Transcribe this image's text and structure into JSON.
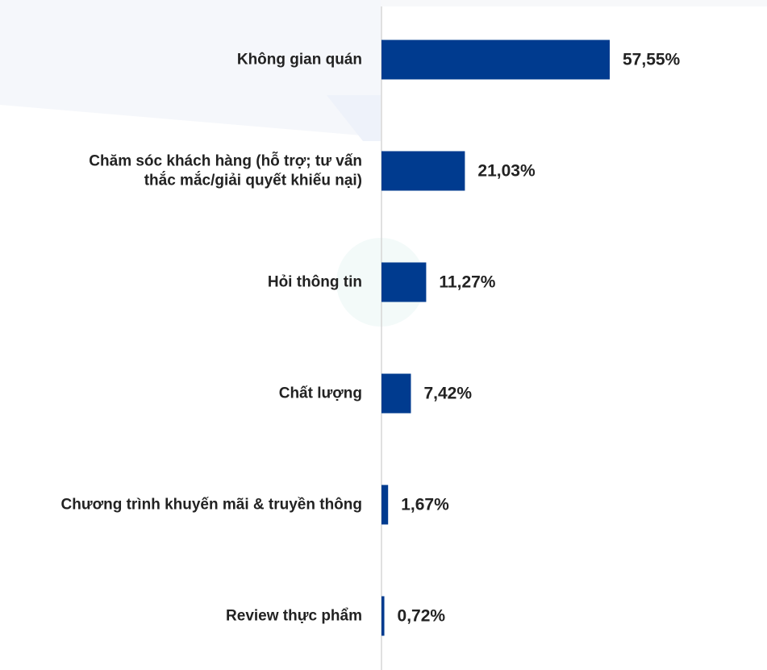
{
  "chart_data": {
    "type": "bar",
    "orientation": "horizontal",
    "categories": [
      [
        "Không gian quán"
      ],
      [
        "Chăm sóc khách hàng (hỗ trợ; tư vấn",
        "thắc mắc/giải quyết khiếu nại)"
      ],
      [
        "Hỏi thông tin"
      ],
      [
        "Chất lượng"
      ],
      [
        "Chương trình khuyến mãi & truyền thông"
      ],
      [
        "Review thực phẩm"
      ]
    ],
    "values": [
      57.55,
      21.03,
      11.27,
      7.42,
      1.67,
      0.72
    ],
    "value_labels": [
      "57,55%",
      "21,03%",
      "11,27%",
      "7,42%",
      "1,67%",
      "0,72%"
    ],
    "xlim": [
      0,
      100
    ],
    "title": "",
    "xlabel": "",
    "ylabel": "",
    "grid": false,
    "colors": {
      "bar": "#003b8f",
      "axis": "#d6d6d6",
      "text": "#222222",
      "decor": "#f3f6fb"
    }
  }
}
